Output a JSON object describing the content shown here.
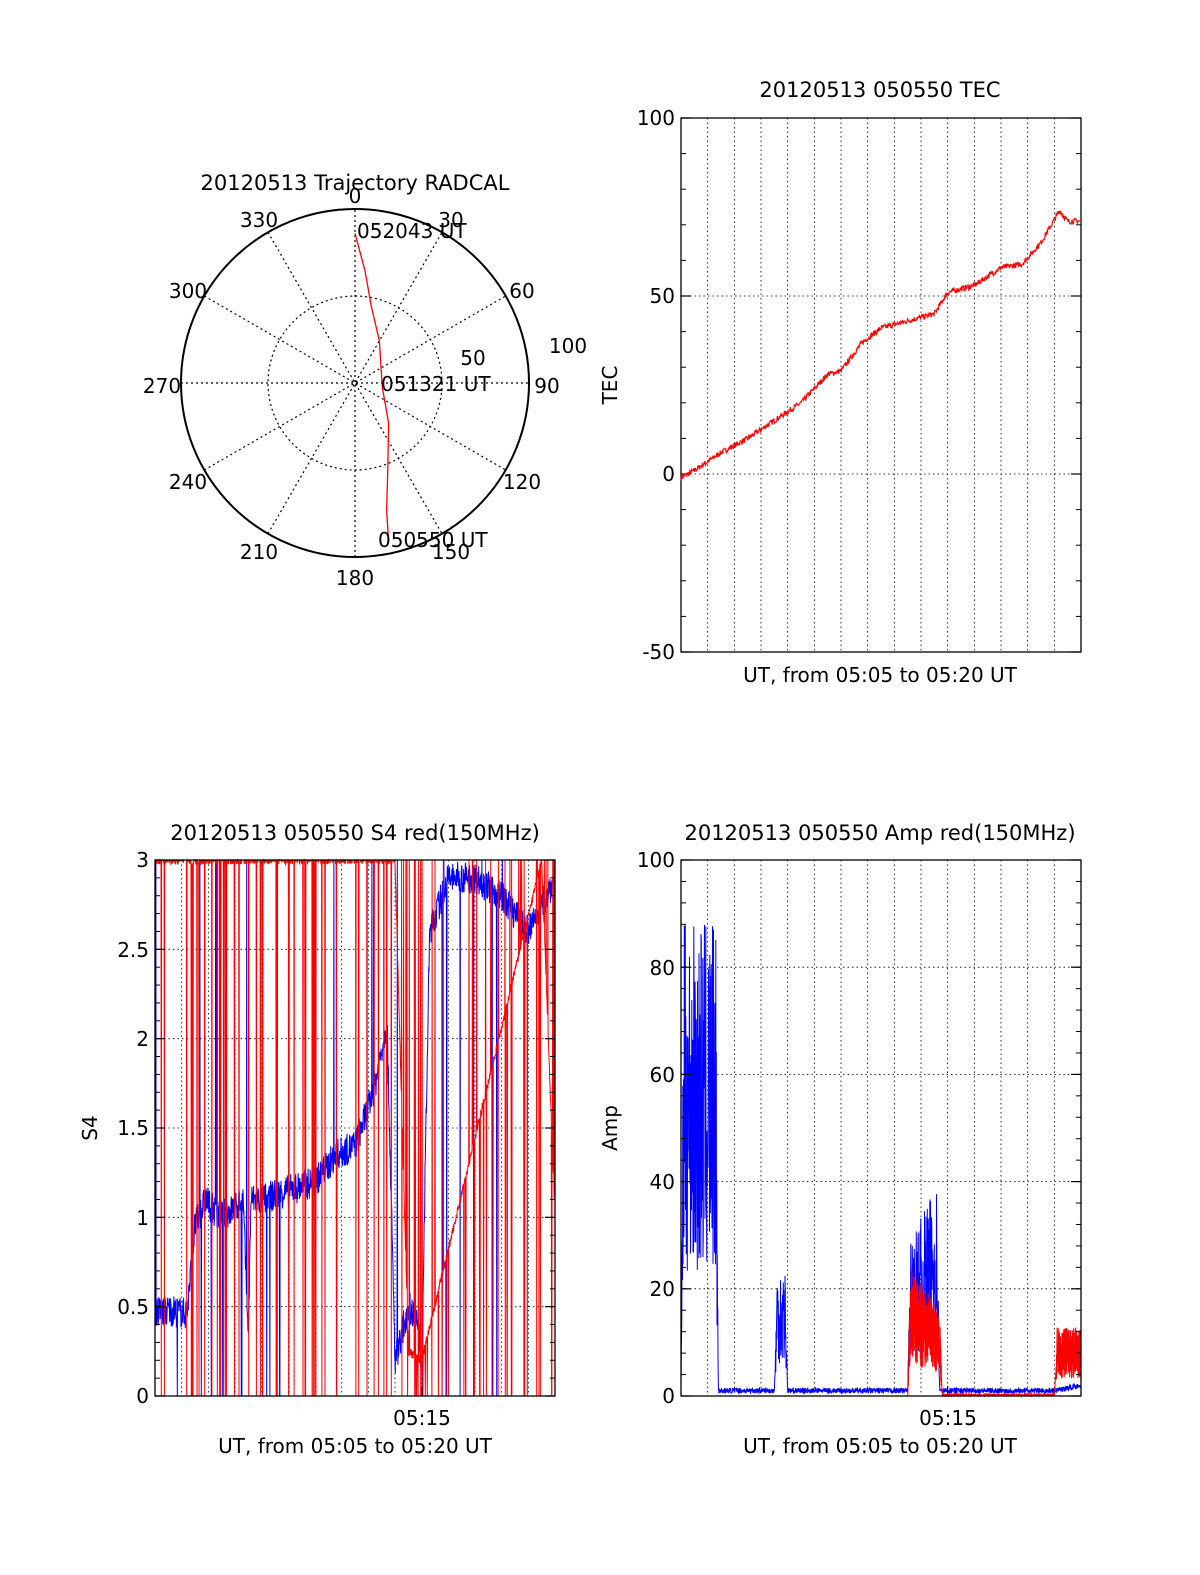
{
  "colors": {
    "red_channel": "#ff0000",
    "blue_channel": "#0000ff",
    "axis": "#000000",
    "grid": "#000000"
  },
  "chart_data": [
    {
      "id": "trajectory",
      "type": "polar",
      "title": "20120513 Trajectory RADCAL",
      "angle_labels": [
        "0",
        "30",
        "60",
        "90",
        "120",
        "150",
        "180",
        "210",
        "240",
        "270",
        "300",
        "330"
      ],
      "radius_labels": [
        "50",
        "100"
      ],
      "rlim": [
        0,
        100
      ],
      "grid": true,
      "track": {
        "color": "red",
        "points": [
          {
            "az": 0,
            "r": 86
          },
          {
            "az": 5,
            "r": 65
          },
          {
            "az": 12,
            "r": 45
          },
          {
            "az": 30,
            "r": 28
          },
          {
            "az": 62,
            "r": 17
          },
          {
            "az": 100,
            "r": 16
          },
          {
            "az": 140,
            "r": 30
          },
          {
            "az": 160,
            "r": 55
          },
          {
            "az": 166,
            "r": 75
          },
          {
            "az": 168,
            "r": 93
          }
        ]
      },
      "annotations": [
        "052043 UT",
        "051321 UT",
        "050550 UT"
      ]
    },
    {
      "id": "tec",
      "type": "line",
      "title": "20120513 050550 TEC",
      "xlabel": "UT, from 05:05 to 05:20 UT",
      "ylabel": "TEC",
      "xlim": [
        0,
        15
      ],
      "ylim": [
        -50,
        100
      ],
      "yticks": [
        "-50",
        "0",
        "50",
        "100"
      ],
      "grid": true,
      "series": [
        {
          "color": "red",
          "x": [
            0,
            0.5,
            1.5,
            2.5,
            3.5,
            4.5,
            5.5,
            6.0,
            6.8,
            7.5,
            8.5,
            9.5,
            10.0,
            11.0,
            12.0,
            12.8,
            13.5,
            14.2,
            14.5,
            15.0
          ],
          "y": [
            -1,
            1,
            6,
            10,
            15,
            20,
            28,
            29,
            37,
            41,
            43,
            45,
            51,
            53,
            58,
            59,
            65,
            74,
            71,
            71
          ]
        }
      ]
    },
    {
      "id": "s4",
      "type": "line",
      "title": "20120513 050550 S4 red(150MHz)",
      "xlabel": "UT, from 05:05 to 05:20 UT",
      "ylabel": "S4",
      "xlim": [
        0,
        15
      ],
      "ylim": [
        0,
        3
      ],
      "xticks": [
        "05:15"
      ],
      "yticks": [
        "0",
        "0.5",
        "1",
        "1.5",
        "2",
        "2.5",
        "3"
      ],
      "grid": true,
      "series": [
        {
          "color": "blue",
          "x": [
            0,
            0.3,
            0.6,
            1.2,
            1.5,
            1.9,
            2.4,
            3.0,
            3.3,
            3.5,
            3.6,
            4.0,
            5.0,
            6.0,
            6.8,
            7.5,
            8.2,
            8.7,
            9.0,
            9.5,
            9.8,
            10.0,
            10.3,
            11.0,
            12.0,
            13.0,
            14.0,
            15.0
          ],
          "y": [
            0.48,
            0.47,
            0.48,
            0.46,
            0.95,
            1.1,
            1.0,
            1.05,
            1.1,
            0.35,
            1.1,
            1.1,
            1.15,
            1.2,
            1.35,
            1.4,
            1.7,
            2.1,
            0.2,
            0.5,
            0.45,
            0.2,
            2.6,
            2.9,
            2.9,
            2.8,
            2.6,
            2.9
          ]
        },
        {
          "color": "red",
          "x": [
            0,
            3.3,
            4.0,
            9.0,
            9.5,
            10.0,
            14.5,
            15.0
          ],
          "y": [
            3.0,
            3.0,
            3.0,
            3.0,
            0.25,
            0.2,
            3.0,
            1.0
          ]
        }
      ]
    },
    {
      "id": "amp",
      "type": "line",
      "title": "20120513 050550 Amp red(150MHz)",
      "xlabel": "UT, from 05:05 to 05:20 UT",
      "ylabel": "Amp",
      "xlim": [
        0,
        15
      ],
      "ylim": [
        0,
        100
      ],
      "xticks": [
        "05:15"
      ],
      "yticks": [
        "0",
        "20",
        "40",
        "60",
        "80",
        "100"
      ],
      "grid": true,
      "series": [
        {
          "color": "blue",
          "x": [
            0,
            0.1,
            1.3,
            1.4,
            3.5,
            3.6,
            3.9,
            4.0,
            8.5,
            8.6,
            9.6,
            9.7,
            14.0,
            15.0
          ],
          "y": [
            1,
            55,
            55,
            1,
            1,
            15,
            15,
            1,
            1,
            18,
            25,
            1,
            1,
            2
          ]
        },
        {
          "color": "red",
          "x": [
            8.5,
            8.6,
            9.7,
            9.8,
            14.0,
            14.1,
            15.0
          ],
          "y": [
            0,
            15,
            10,
            0,
            0,
            8,
            8
          ]
        }
      ]
    }
  ]
}
